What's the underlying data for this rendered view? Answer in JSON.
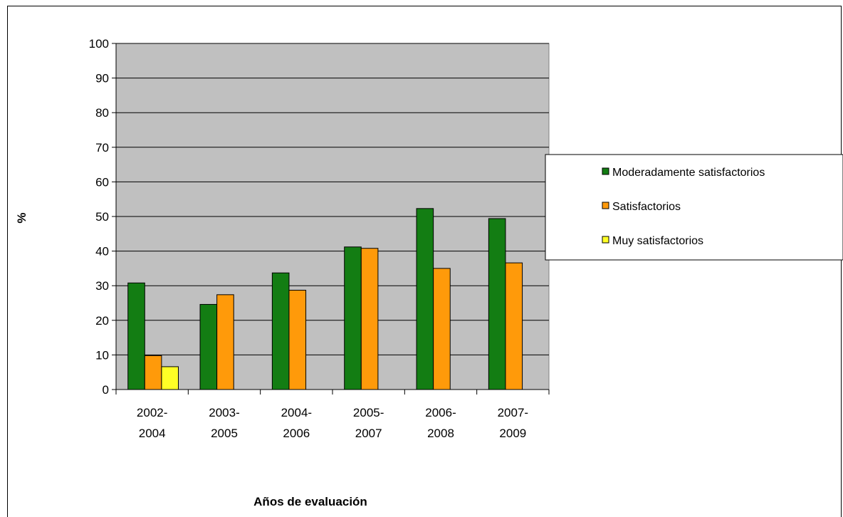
{
  "chart_data": {
    "type": "bar",
    "categories": [
      [
        "2002-",
        "2004"
      ],
      [
        "2003-",
        "2005"
      ],
      [
        "2004-",
        "2006"
      ],
      [
        "2005-",
        "2007"
      ],
      [
        "2006-",
        "2008"
      ],
      [
        "2007-",
        "2009"
      ]
    ],
    "series": [
      {
        "name": "Moderadamente satisfactorios",
        "color": "#137d13",
        "values": [
          30.8,
          24.6,
          33.7,
          41.2,
          52.3,
          49.4
        ]
      },
      {
        "name": "Satisfactorios",
        "color": "#ff9a0a",
        "values": [
          9.8,
          27.4,
          28.7,
          40.8,
          35.0,
          36.6
        ]
      },
      {
        "name": "Muy satisfactorios",
        "color": "#ffff26",
        "values": [
          6.6,
          null,
          null,
          null,
          null,
          null
        ]
      }
    ],
    "xlabel": "Años de evaluación",
    "ylabel": "%",
    "ylim": [
      0,
      100
    ],
    "yticks": [
      0,
      10,
      20,
      30,
      40,
      50,
      60,
      70,
      80,
      90,
      100
    ],
    "grid": true,
    "plot_background": "#c0c0c0",
    "legend_position": "right"
  }
}
